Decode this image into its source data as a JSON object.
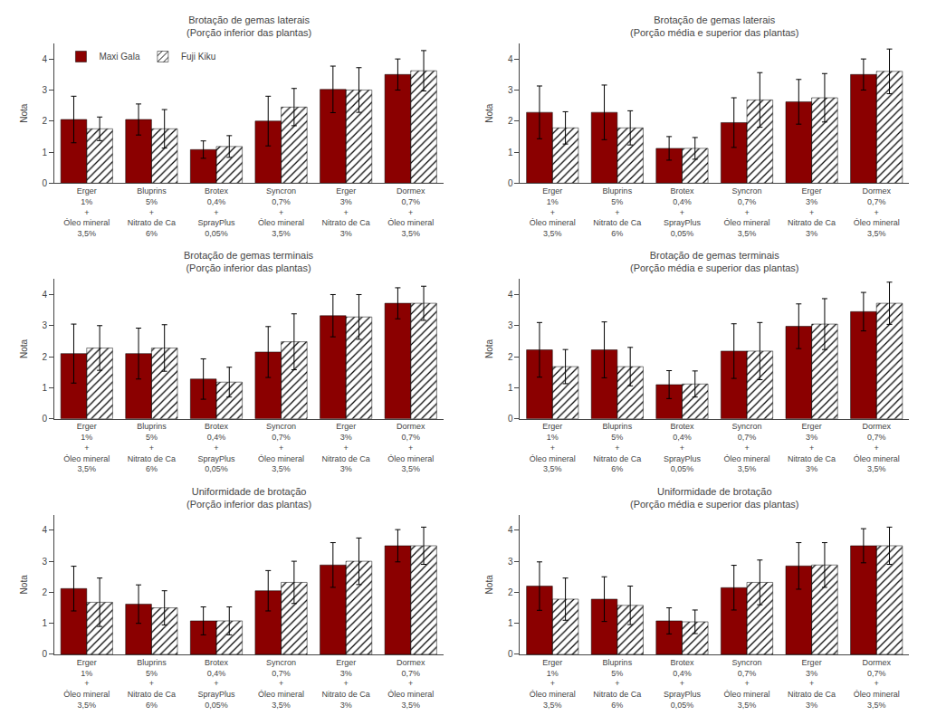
{
  "chart_data": [
    {
      "type": "bar",
      "title": "Brotação de gemas laterais\n(Porção inferior das plantas)",
      "categories": [
        "Erger\n1%\n+\nÓleo mineral\n3,5%",
        "Bluprins\n5%\n+\nNitrato de Ca\n6%",
        "Brotex\n0,4%\n+\nSprayPlus\n0,05%",
        "Syncron\n0,7%\n+\nÓleo mineral\n3,5%",
        "Erger\n3%\n+\nNitrato de Ca\n3%",
        "Dormex\n0,7%\n+\nÓleo mineral\n3,5%"
      ],
      "series": [
        {
          "name": "Maxi Gala",
          "color": "#8B0000",
          "values": [
            2.05,
            2.05,
            1.08,
            2.0,
            3.02,
            3.5
          ],
          "errors": [
            0.75,
            0.5,
            0.28,
            0.8,
            0.75,
            0.5
          ]
        },
        {
          "name": "Fuji Kiku",
          "color": "#A9A9A9",
          "values": [
            1.75,
            1.75,
            1.18,
            2.45,
            3.0,
            3.62
          ],
          "errors": [
            0.38,
            0.62,
            0.35,
            0.6,
            0.72,
            0.65
          ]
        }
      ],
      "ylabel": "Nota",
      "ylim": [
        0,
        4.5
      ],
      "yticks": [
        0,
        1,
        2,
        3,
        4
      ],
      "grid": false,
      "legend": "upper left"
    },
    {
      "type": "bar",
      "title": "Brotação de gemas laterais\n(Porção média e superior das plantas)",
      "categories": [
        "Erger\n1%\n+\nÓleo mineral\n3,5%",
        "Bluprins\n5%\n+\nNitrato de Ca\n6%",
        "Brotex\n0,4%\n+\nSprayPlus\n0,05%",
        "Syncron\n0,7%\n+\nÓleo mineral\n3,5%",
        "Erger\n3%\n+\nNitrato de Ca\n3%",
        "Dormex\n0,7%\n+\nÓleo mineral\n3,5%"
      ],
      "series": [
        {
          "name": "Maxi Gala",
          "color": "#8B0000",
          "values": [
            2.28,
            2.28,
            1.12,
            1.95,
            2.62,
            3.5
          ],
          "errors": [
            0.85,
            0.88,
            0.38,
            0.8,
            0.72,
            0.5
          ]
        },
        {
          "name": "Fuji Kiku",
          "color": "#A9A9A9",
          "values": [
            1.78,
            1.78,
            1.12,
            2.68,
            2.75,
            3.6
          ],
          "errors": [
            0.52,
            0.55,
            0.35,
            0.88,
            0.78,
            0.72
          ]
        }
      ],
      "ylabel": "Nota",
      "ylim": [
        0,
        4.5
      ],
      "yticks": [
        0,
        1,
        2,
        3,
        4
      ],
      "grid": false
    },
    {
      "type": "bar",
      "title": "Brotação de gemas terminais\n(Porção inferior das plantas)",
      "categories": [
        "Erger\n1%\n+\nÓleo mineral\n3,5%",
        "Bluprins\n5%\n+\nNitrato de Ca\n6%",
        "Brotex\n0,4%\n+\nSprayPlus\n0,05%",
        "Syncron\n0,7%\n+\nÓleo mineral\n3,5%",
        "Erger\n3%\n+\nNitrato de Ca\n3%",
        "Dormex\n0,7%\n+\nÓleo mineral\n3,5%"
      ],
      "series": [
        {
          "name": "Maxi Gala",
          "color": "#8B0000",
          "values": [
            2.1,
            2.1,
            1.28,
            2.15,
            3.32,
            3.72
          ],
          "errors": [
            0.95,
            0.82,
            0.65,
            0.82,
            0.68,
            0.5
          ]
        },
        {
          "name": "Fuji Kiku",
          "color": "#A9A9A9",
          "values": [
            2.28,
            2.28,
            1.18,
            2.48,
            3.28,
            3.72
          ],
          "errors": [
            0.72,
            0.75,
            0.48,
            0.9,
            0.72,
            0.55
          ]
        }
      ],
      "ylabel": "Nota",
      "ylim": [
        0,
        4.5
      ],
      "yticks": [
        0,
        1,
        2,
        3,
        4
      ],
      "grid": false
    },
    {
      "type": "bar",
      "title": "Brotação de gemas terminais\n(Porção média e superior das plantas)",
      "categories": [
        "Erger\n1%\n+\nÓleo mineral\n3,5%",
        "Bluprins\n5%\n+\nNitrato de Ca\n6%",
        "Brotex\n0,4%\n+\nSprayPlus\n0,05%",
        "Syncron\n0,7%\n+\nÓleo mineral\n3,5%",
        "Erger\n3%\n+\nNitrato de Ca\n3%",
        "Dormex\n0,7%\n+\nÓleo mineral\n3,5%"
      ],
      "series": [
        {
          "name": "Maxi Gala",
          "color": "#8B0000",
          "values": [
            2.22,
            2.22,
            1.1,
            2.18,
            2.98,
            3.45
          ],
          "errors": [
            0.88,
            0.9,
            0.45,
            0.88,
            0.72,
            0.62
          ]
        },
        {
          "name": "Fuji Kiku",
          "color": "#A9A9A9",
          "values": [
            1.68,
            1.68,
            1.12,
            2.18,
            3.05,
            3.72
          ],
          "errors": [
            0.55,
            0.62,
            0.42,
            0.92,
            0.82,
            0.68
          ]
        }
      ],
      "ylabel": "Nota",
      "ylim": [
        0,
        4.5
      ],
      "yticks": [
        0,
        1,
        2,
        3,
        4
      ],
      "grid": false
    },
    {
      "type": "bar",
      "title": "Uniformidade de brotação\n(Porção inferior das plantas)",
      "categories": [
        "Erger\n1%\n+\nÓleo mineral\n3,5%",
        "Bluprins\n5%\n+\nNitrato de Ca\n6%",
        "Brotex\n0,4%\n+\nSprayPlus\n0,05%",
        "Syncron\n0,7%\n+\nÓleo mineral\n3,5%",
        "Erger\n3%\n+\nNitrato de Ca\n3%",
        "Dormex\n0,7%\n+\nÓleo mineral\n3,5%"
      ],
      "series": [
        {
          "name": "Maxi Gala",
          "color": "#8B0000",
          "values": [
            2.12,
            1.62,
            1.08,
            2.05,
            2.88,
            3.5
          ],
          "errors": [
            0.72,
            0.62,
            0.45,
            0.65,
            0.72,
            0.52
          ]
        },
        {
          "name": "Fuji Kiku",
          "color": "#A9A9A9",
          "values": [
            1.68,
            1.5,
            1.08,
            2.32,
            3.0,
            3.5
          ],
          "errors": [
            0.78,
            0.55,
            0.45,
            0.68,
            0.75,
            0.6
          ]
        }
      ],
      "ylabel": "Nota",
      "ylim": [
        0,
        4.5
      ],
      "yticks": [
        0,
        1,
        2,
        3,
        4
      ],
      "grid": false
    },
    {
      "type": "bar",
      "title": "Uniformidade de brotação\n(Porção média e superior das plantas)",
      "categories": [
        "Erger\n1%\n+\nÓleo mineral\n3,5%",
        "Bluprins\n5%\n+\nNitrato de Ca\n6%",
        "Brotex\n0,4%\n+\nSprayPlus\n0,05%",
        "Syncron\n0,7%\n+\nÓleo mineral\n3,5%",
        "Erger\n3%\n+\nNitrato de Ca\n3%",
        "Dormex\n0,7%\n+\nÓleo mineral\n3,5%"
      ],
      "series": [
        {
          "name": "Maxi Gala",
          "color": "#8B0000",
          "values": [
            2.2,
            1.78,
            1.08,
            2.15,
            2.85,
            3.5
          ],
          "errors": [
            0.78,
            0.72,
            0.42,
            0.72,
            0.75,
            0.55
          ]
        },
        {
          "name": "Fuji Kiku",
          "color": "#A9A9A9",
          "values": [
            1.78,
            1.58,
            1.05,
            2.32,
            2.88,
            3.5
          ],
          "errors": [
            0.68,
            0.62,
            0.38,
            0.72,
            0.72,
            0.6
          ]
        }
      ],
      "ylabel": "Nota",
      "ylim": [
        0,
        4.5
      ],
      "yticks": [
        0,
        1,
        2,
        3,
        4
      ],
      "grid": false
    }
  ]
}
